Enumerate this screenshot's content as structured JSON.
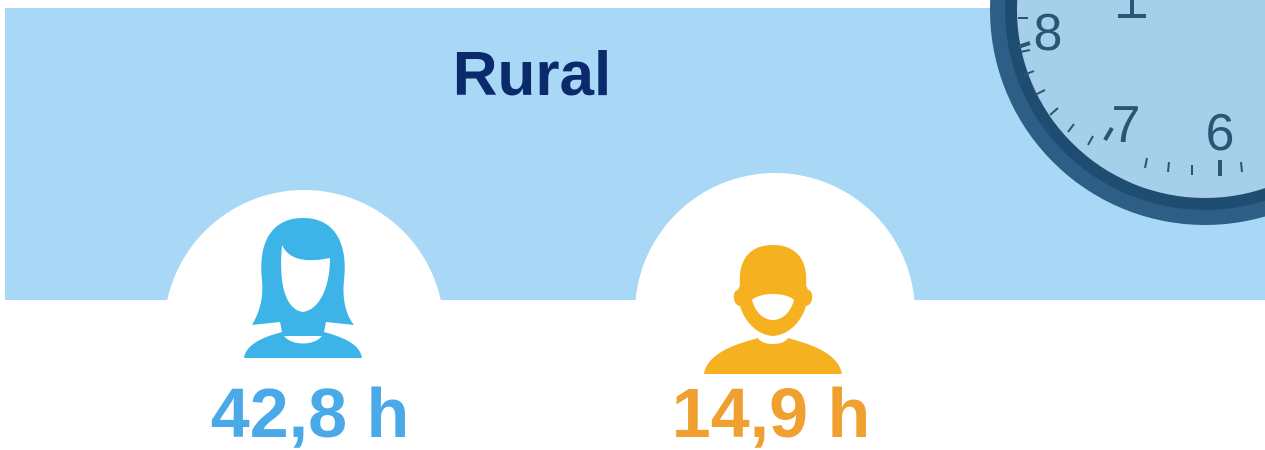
{
  "title": "Rural",
  "figures": [
    {
      "text": "42,8 h"
    },
    {
      "text": "14,9 h"
    }
  ],
  "clock": {
    "numbers": [
      "8",
      "7",
      "6"
    ]
  }
}
